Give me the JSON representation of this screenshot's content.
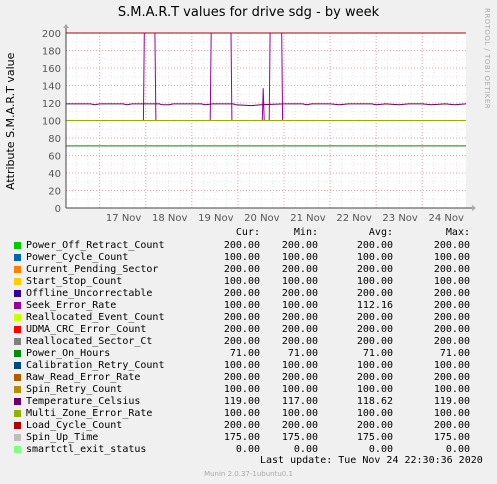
{
  "title": "S.M.A.R.T values for drive sdg - by week",
  "side_text": "RRDTOOL / TOBI OETIKER",
  "footer": {
    "last_update": "Last update: Tue Nov 24 22:30:36 2020",
    "munin": "Munin 2.0.37-1ubuntu0.1"
  },
  "legend_headers": [
    "Cur:",
    "Min:",
    "Avg:",
    "Max:"
  ],
  "chart_data": {
    "type": "line",
    "title": "S.M.A.R.T values for drive sdg - by week",
    "ylabel": "Attribute S.M.A.R.T value",
    "xlabel": "",
    "ylim": [
      0,
      200
    ],
    "yticks": [
      0,
      20,
      40,
      60,
      80,
      100,
      120,
      140,
      160,
      180,
      200
    ],
    "xlim": [
      16.27,
      24.95
    ],
    "x_ticks": [
      {
        "x": 17,
        "label": "17 Nov"
      },
      {
        "x": 18,
        "label": "18 Nov"
      },
      {
        "x": 19,
        "label": "19 Nov"
      },
      {
        "x": 20,
        "label": "20 Nov"
      },
      {
        "x": 21,
        "label": "21 Nov"
      },
      {
        "x": 22,
        "label": "22 Nov"
      },
      {
        "x": 23,
        "label": "23 Nov"
      },
      {
        "x": 24,
        "label": "24 Nov"
      }
    ],
    "grid": true,
    "series": [
      {
        "name": "Power_Off_Retract_Count",
        "color": "#00cc00",
        "cur": "200.00",
        "min": "200.00",
        "avg": "200.00",
        "max": "200.00",
        "values": [
          [
            16.27,
            200
          ],
          [
            24.95,
            200
          ]
        ]
      },
      {
        "name": "Power_Cycle_Count",
        "color": "#0066b3",
        "cur": "100.00",
        "min": "100.00",
        "avg": "100.00",
        "max": "100.00",
        "values": [
          [
            16.27,
            100
          ],
          [
            24.95,
            100
          ]
        ]
      },
      {
        "name": "Current_Pending_Sector",
        "color": "#ff8000",
        "cur": "200.00",
        "min": "200.00",
        "avg": "200.00",
        "max": "200.00",
        "values": [
          [
            16.27,
            200
          ],
          [
            24.95,
            200
          ]
        ]
      },
      {
        "name": "Start_Stop_Count",
        "color": "#ffcc00",
        "cur": "100.00",
        "min": "100.00",
        "avg": "100.00",
        "max": "100.00",
        "values": [
          [
            16.27,
            100
          ],
          [
            24.95,
            100
          ]
        ]
      },
      {
        "name": "Offline_Uncorrectable",
        "color": "#330099",
        "cur": "200.00",
        "min": "200.00",
        "avg": "200.00",
        "max": "200.00",
        "values": [
          [
            16.27,
            200
          ],
          [
            24.95,
            200
          ]
        ]
      },
      {
        "name": "Seek_Error_Rate",
        "color": "#990099",
        "cur": "100.00",
        "min": "100.00",
        "avg": "112.16",
        "max": "200.00",
        "values": [
          [
            16.27,
            100
          ],
          [
            17.95,
            100
          ],
          [
            17.97,
            200
          ],
          [
            18.2,
            200
          ],
          [
            18.22,
            100
          ],
          [
            19.4,
            100
          ],
          [
            19.42,
            200
          ],
          [
            19.85,
            200
          ],
          [
            19.87,
            100
          ],
          [
            20.53,
            100
          ],
          [
            20.55,
            137
          ],
          [
            20.57,
            100
          ],
          [
            20.68,
            100
          ],
          [
            20.7,
            200
          ],
          [
            20.95,
            200
          ],
          [
            20.97,
            100
          ],
          [
            24.95,
            100
          ]
        ]
      },
      {
        "name": "Reallocated_Event_Count",
        "color": "#ccff00",
        "cur": "200.00",
        "min": "200.00",
        "avg": "200.00",
        "max": "200.00",
        "values": [
          [
            16.27,
            200
          ],
          [
            24.95,
            200
          ]
        ]
      },
      {
        "name": "UDMA_CRC_Error_Count",
        "color": "#ff0000",
        "cur": "200.00",
        "min": "200.00",
        "avg": "200.00",
        "max": "200.00",
        "values": [
          [
            16.27,
            200
          ],
          [
            24.95,
            200
          ]
        ]
      },
      {
        "name": "Reallocated_Sector_Ct",
        "color": "#808080",
        "cur": "200.00",
        "min": "200.00",
        "avg": "200.00",
        "max": "200.00",
        "values": [
          [
            16.27,
            200
          ],
          [
            24.95,
            200
          ]
        ]
      },
      {
        "name": "Power_On_Hours",
        "color": "#008f00",
        "cur": "71.00",
        "min": "71.00",
        "avg": "71.00",
        "max": "71.00",
        "values": [
          [
            16.27,
            71
          ],
          [
            24.95,
            71
          ]
        ]
      },
      {
        "name": "Calibration_Retry_Count",
        "color": "#00487d",
        "cur": "100.00",
        "min": "100.00",
        "avg": "100.00",
        "max": "100.00",
        "values": [
          [
            16.27,
            100
          ],
          [
            24.95,
            100
          ]
        ]
      },
      {
        "name": "Raw_Read_Error_Rate",
        "color": "#b35a00",
        "cur": "200.00",
        "min": "200.00",
        "avg": "200.00",
        "max": "200.00",
        "values": [
          [
            16.27,
            200
          ],
          [
            24.95,
            200
          ]
        ]
      },
      {
        "name": "Spin_Retry_Count",
        "color": "#b38f00",
        "cur": "100.00",
        "min": "100.00",
        "avg": "100.00",
        "max": "100.00",
        "values": [
          [
            16.27,
            100
          ],
          [
            24.95,
            100
          ]
        ]
      },
      {
        "name": "Temperature_Celsius",
        "color": "#6b006b",
        "cur": "119.00",
        "min": "117.00",
        "avg": "118.62",
        "max": "119.00",
        "values": [
          [
            16.27,
            119
          ],
          [
            16.8,
            119
          ],
          [
            16.9,
            118
          ],
          [
            17.0,
            119
          ],
          [
            17.5,
            119
          ],
          [
            17.6,
            118
          ],
          [
            17.7,
            119
          ],
          [
            18.3,
            119
          ],
          [
            18.35,
            118
          ],
          [
            18.5,
            118
          ],
          [
            18.6,
            119
          ],
          [
            19.2,
            119
          ],
          [
            19.3,
            118
          ],
          [
            19.45,
            119
          ],
          [
            19.9,
            119
          ],
          [
            19.95,
            118
          ],
          [
            20.3,
            117
          ],
          [
            20.5,
            118
          ],
          [
            21.0,
            119
          ],
          [
            21.4,
            119
          ],
          [
            21.5,
            118
          ],
          [
            21.6,
            119
          ],
          [
            22.0,
            119
          ],
          [
            22.2,
            118
          ],
          [
            22.4,
            119
          ],
          [
            22.9,
            119
          ],
          [
            23.0,
            118
          ],
          [
            23.2,
            119
          ],
          [
            23.5,
            118
          ],
          [
            23.7,
            119
          ],
          [
            24.0,
            119
          ],
          [
            24.2,
            118
          ],
          [
            24.5,
            119
          ],
          [
            24.7,
            118
          ],
          [
            24.95,
            119
          ]
        ]
      },
      {
        "name": "Multi_Zone_Error_Rate",
        "color": "#8fb300",
        "cur": "100.00",
        "min": "100.00",
        "avg": "100.00",
        "max": "100.00",
        "values": [
          [
            16.27,
            100
          ],
          [
            24.95,
            100
          ]
        ]
      },
      {
        "name": "Load_Cycle_Count",
        "color": "#b30000",
        "cur": "200.00",
        "min": "200.00",
        "avg": "200.00",
        "max": "200.00",
        "values": [
          [
            16.27,
            200
          ],
          [
            24.95,
            200
          ]
        ]
      },
      {
        "name": "Spin_Up_Time",
        "color": "#bebebe",
        "cur": "175.00",
        "min": "175.00",
        "avg": "175.00",
        "max": "175.00",
        "values": []
      },
      {
        "name": "smartctl_exit_status",
        "color": "#80ff80",
        "cur": "0.00",
        "min": "0.00",
        "avg": "0.00",
        "max": "0.00",
        "values": [
          [
            16.27,
            0
          ],
          [
            24.95,
            0
          ]
        ]
      }
    ]
  }
}
